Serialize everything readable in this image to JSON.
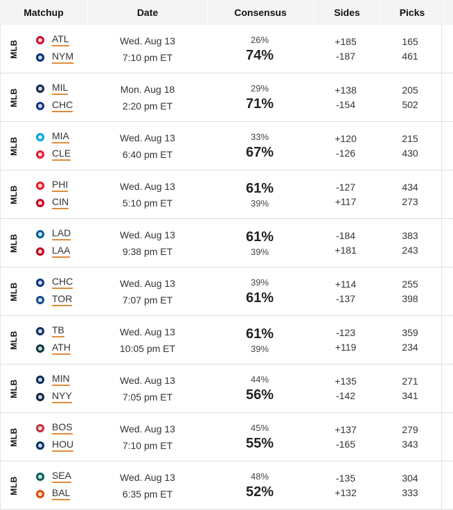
{
  "headers": {
    "matchup": "Matchup",
    "date": "Date",
    "consensus": "Consensus",
    "sides": "Sides",
    "picks": "Picks"
  },
  "rows": [
    {
      "league": "MLB",
      "t1": "ATL",
      "t2": "NYM",
      "date": "Wed. Aug 13",
      "time": "7:10 pm ET",
      "c1": "26%",
      "c2": "74%",
      "big": 2,
      "s1": "+185",
      "s2": "-187",
      "p1": "165",
      "p2": "461",
      "logo1": "braves-logo-icon",
      "logo2": "mets-logo-icon",
      "col1": "#c8102e",
      "col2": "#002d72"
    },
    {
      "league": "MLB",
      "t1": "MIL",
      "t2": "CHC",
      "date": "Mon. Aug 18",
      "time": "2:20 pm ET",
      "c1": "29%",
      "c2": "71%",
      "big": 2,
      "s1": "+138",
      "s2": "-154",
      "p1": "205",
      "p2": "502",
      "logo1": "brewers-logo-icon",
      "logo2": "cubs-logo-icon",
      "col1": "#12284b",
      "col2": "#0e3386"
    },
    {
      "league": "MLB",
      "t1": "MIA",
      "t2": "CLE",
      "date": "Wed. Aug 13",
      "time": "6:40 pm ET",
      "c1": "33%",
      "c2": "67%",
      "big": 2,
      "s1": "+120",
      "s2": "-126",
      "p1": "215",
      "p2": "430",
      "logo1": "marlins-logo-icon",
      "logo2": "guardians-logo-icon",
      "col1": "#00a3e0",
      "col2": "#e31937"
    },
    {
      "league": "MLB",
      "t1": "PHI",
      "t2": "CIN",
      "date": "Wed. Aug 13",
      "time": "5:10 pm ET",
      "c1": "61%",
      "c2": "39%",
      "big": 1,
      "s1": "-127",
      "s2": "+117",
      "p1": "434",
      "p2": "273",
      "logo1": "phillies-logo-icon",
      "logo2": "reds-logo-icon",
      "col1": "#e81828",
      "col2": "#c6011f"
    },
    {
      "league": "MLB",
      "t1": "LAD",
      "t2": "LAA",
      "date": "Wed. Aug 13",
      "time": "9:38 pm ET",
      "c1": "61%",
      "c2": "39%",
      "big": 1,
      "s1": "-184",
      "s2": "+181",
      "p1": "383",
      "p2": "243",
      "logo1": "dodgers-logo-icon",
      "logo2": "angels-logo-icon",
      "col1": "#005a9c",
      "col2": "#ba0021"
    },
    {
      "league": "MLB",
      "t1": "CHC",
      "t2": "TOR",
      "date": "Wed. Aug 13",
      "time": "7:07 pm ET",
      "c1": "39%",
      "c2": "61%",
      "big": 2,
      "s1": "+114",
      "s2": "-137",
      "p1": "255",
      "p2": "398",
      "logo1": "cubs-logo-icon",
      "logo2": "blue-jays-logo-icon",
      "col1": "#0e3386",
      "col2": "#134a8e"
    },
    {
      "league": "MLB",
      "t1": "TB",
      "t2": "ATH",
      "date": "Wed. Aug 13",
      "time": "10:05 pm ET",
      "c1": "61%",
      "c2": "39%",
      "big": 1,
      "s1": "-123",
      "s2": "+119",
      "p1": "359",
      "p2": "234",
      "logo1": "rays-logo-icon",
      "logo2": "athletics-logo-icon",
      "col1": "#092c5c",
      "col2": "#003831"
    },
    {
      "league": "MLB",
      "t1": "MIN",
      "t2": "NYY",
      "date": "Wed. Aug 13",
      "time": "7:05 pm ET",
      "c1": "44%",
      "c2": "56%",
      "big": 2,
      "s1": "+135",
      "s2": "-142",
      "p1": "271",
      "p2": "341",
      "logo1": "twins-logo-icon",
      "logo2": "yankees-logo-icon",
      "col1": "#002b5c",
      "col2": "#0c2340"
    },
    {
      "league": "MLB",
      "t1": "BOS",
      "t2": "HOU",
      "date": "Wed. Aug 13",
      "time": "7:10 pm ET",
      "c1": "45%",
      "c2": "55%",
      "big": 2,
      "s1": "+137",
      "s2": "-165",
      "p1": "279",
      "p2": "343",
      "logo1": "red-sox-logo-icon",
      "logo2": "astros-logo-icon",
      "col1": "#bd3039",
      "col2": "#002d62"
    },
    {
      "league": "MLB",
      "t1": "SEA",
      "t2": "BAL",
      "date": "Wed. Aug 13",
      "time": "6:35 pm ET",
      "c1": "48%",
      "c2": "52%",
      "big": 2,
      "s1": "-135",
      "s2": "+132",
      "p1": "304",
      "p2": "333",
      "logo1": "mariners-logo-icon",
      "logo2": "orioles-logo-icon",
      "col1": "#005c5c",
      "col2": "#df4601"
    }
  ]
}
